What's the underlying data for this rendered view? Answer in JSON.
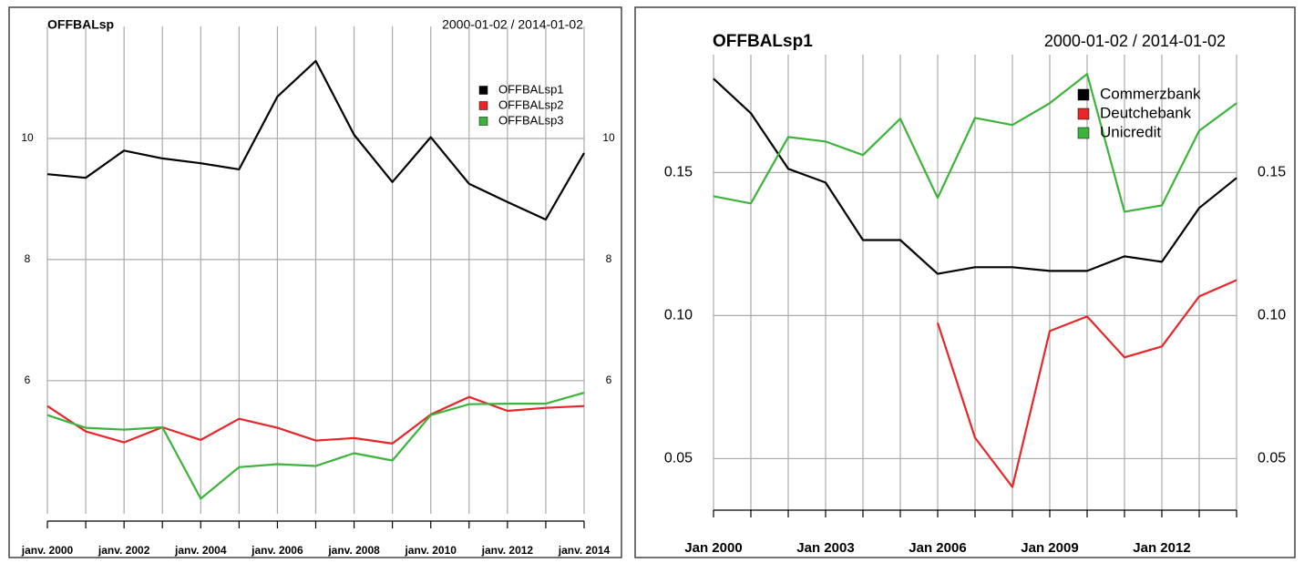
{
  "chart_data": [
    {
      "type": "line",
      "title": "OFFBALsp",
      "subtitle": "2000-01-02 / 2014-01-02",
      "categories": [
        "janv. 2000",
        null,
        "janv. 2002",
        null,
        "janv. 2004",
        null,
        "janv. 2006",
        null,
        "janv. 2008",
        null,
        "janv. 2010",
        null,
        "janv. 2012",
        null,
        "janv. 2014"
      ],
      "series": [
        {
          "name": "OFFBALsp1",
          "color": "#000000",
          "values": [
            9.41,
            9.35,
            9.8,
            9.67,
            9.59,
            9.49,
            10.69,
            11.28,
            10.06,
            9.28,
            10.02,
            9.25,
            8.95,
            8.66,
            9.76
          ]
        },
        {
          "name": "OFFBALsp2",
          "color": "#e8262a",
          "values": [
            5.58,
            5.16,
            4.98,
            5.23,
            5.02,
            5.37,
            5.22,
            5.01,
            5.05,
            4.96,
            5.44,
            5.73,
            5.5,
            5.55,
            5.58
          ]
        },
        {
          "name": "OFFBALsp3",
          "color": "#3cb43c",
          "values": [
            5.43,
            5.22,
            5.19,
            5.23,
            4.05,
            4.57,
            4.62,
            4.59,
            4.8,
            4.68,
            5.43,
            5.61,
            5.62,
            5.62,
            5.8
          ]
        }
      ],
      "ylim": [
        3.8,
        11.7
      ],
      "yticks": [
        6,
        8,
        10
      ],
      "grid": true,
      "legend": "top-right"
    },
    {
      "type": "line",
      "title": "OFFBALsp1",
      "subtitle": "2000-01-02 / 2014-01-02",
      "categories": [
        "Jan 2000",
        null,
        null,
        "Jan 2003",
        null,
        null,
        "Jan 2006",
        null,
        null,
        "Jan 2009",
        null,
        null,
        "Jan 2012",
        null,
        null
      ],
      "series": [
        {
          "name": "Commerzbank",
          "color": "#000000",
          "values": [
            0.1828,
            0.1707,
            0.1513,
            0.1465,
            0.1264,
            0.1264,
            0.1146,
            0.1169,
            0.1169,
            0.1156,
            0.1156,
            0.1207,
            0.1188,
            0.1376,
            0.1481
          ]
        },
        {
          "name": "Deutchebank",
          "color": "#e8262a",
          "values": [
            null,
            null,
            null,
            null,
            null,
            null,
            0.0975,
            0.0573,
            0.0401,
            0.0946,
            0.0997,
            0.0854,
            0.0892,
            0.1067,
            0.1124
          ]
        },
        {
          "name": "Unicredit",
          "color": "#3cb43c",
          "values": [
            0.1417,
            0.1392,
            0.1624,
            0.1608,
            0.1561,
            0.1688,
            0.1411,
            0.1691,
            0.1666,
            0.1742,
            0.1844,
            0.1363,
            0.1385,
            0.1646,
            0.1742
          ]
        }
      ],
      "ylim": [
        0.032,
        0.188
      ],
      "yticks": [
        0.05,
        {
          "value": 0.1,
          "label": "0.10"
        },
        0.15
      ],
      "grid": true,
      "legend": "top-right"
    }
  ]
}
